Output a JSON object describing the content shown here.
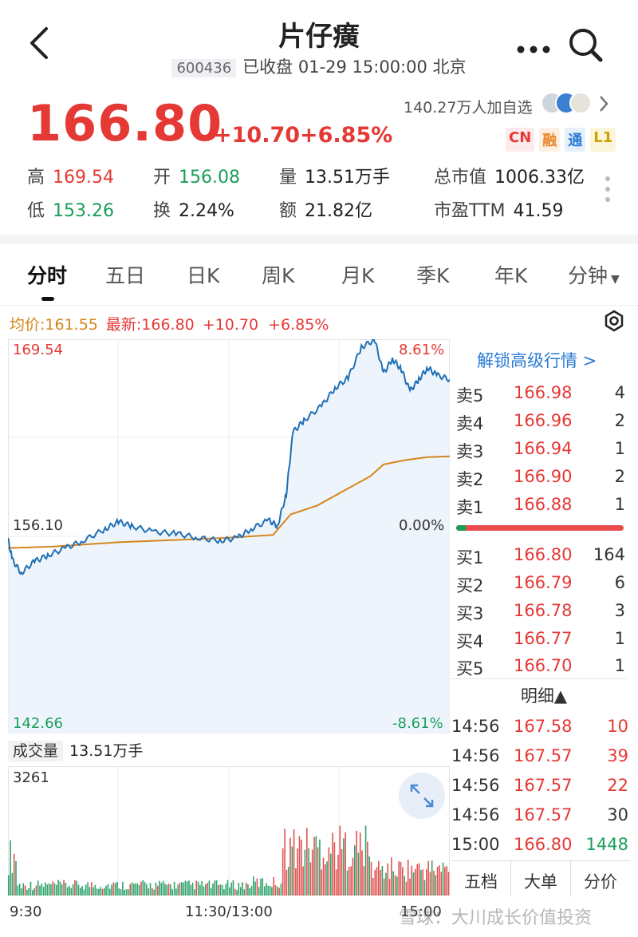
{
  "header": {
    "title": "片仔癀",
    "code": "600436",
    "status": "已收盘 01-29 15:00:00 北京"
  },
  "quote": {
    "price": "166.80",
    "change": "+10.70",
    "change_pct": "+6.85%",
    "follow_text": "140.27万人加自选",
    "tags": [
      "CN",
      "融",
      "通",
      "L1"
    ]
  },
  "stats": {
    "high_label": "高",
    "high": "169.54",
    "open_label": "开",
    "open": "156.08",
    "vol_label": "量",
    "vol": "13.51万手",
    "mcap_label": "总市值",
    "mcap": "1006.33亿",
    "low_label": "低",
    "low": "153.26",
    "turn_label": "换",
    "turn": "2.24%",
    "amt_label": "额",
    "amt": "21.82亿",
    "pe_label": "市盈TTM",
    "pe": "41.59"
  },
  "tabs": [
    "分时",
    "五日",
    "日K",
    "周K",
    "月K",
    "季K",
    "年K",
    "分钟"
  ],
  "intraday": {
    "avg_text": "均价:161.55",
    "latest_text": "最新:166.80",
    "latest_chg": "+10.70",
    "latest_pct": "+6.85%",
    "y_top": "169.54",
    "y_mid": "156.10",
    "y_bot": "142.66",
    "pct_top": "8.61%",
    "pct_mid": "0.00%",
    "pct_bot": "-8.61%",
    "vol_label": "成交量",
    "vol_value": "13.51万手",
    "vol_max": "3261",
    "x_labels": [
      "9:30",
      "11:30/13:00",
      "15:00"
    ],
    "colors": {
      "price": "#1f6fb5",
      "avg": "#d5861a",
      "up": "#e0524f",
      "down": "#2fa36b"
    }
  },
  "orderbook": {
    "unlock": "解锁高级行情 >",
    "asks": [
      {
        "label": "卖5",
        "price": "166.98",
        "vol": "4"
      },
      {
        "label": "卖4",
        "price": "166.96",
        "vol": "2"
      },
      {
        "label": "卖3",
        "price": "166.94",
        "vol": "1"
      },
      {
        "label": "卖2",
        "price": "166.90",
        "vol": "2"
      },
      {
        "label": "卖1",
        "price": "166.88",
        "vol": "1"
      }
    ],
    "bids": [
      {
        "label": "买1",
        "price": "166.80",
        "vol": "164"
      },
      {
        "label": "买2",
        "price": "166.79",
        "vol": "6"
      },
      {
        "label": "买3",
        "price": "166.78",
        "vol": "3"
      },
      {
        "label": "买4",
        "price": "166.77",
        "vol": "1"
      },
      {
        "label": "买5",
        "price": "166.70",
        "vol": "1"
      }
    ],
    "detail_title": "明细▲",
    "ticks": [
      {
        "time": "14:56",
        "price": "167.58",
        "vol": "10",
        "dir": "up"
      },
      {
        "time": "14:56",
        "price": "167.57",
        "vol": "39",
        "dir": "up"
      },
      {
        "time": "14:56",
        "price": "167.57",
        "vol": "22",
        "dir": "up"
      },
      {
        "time": "14:56",
        "price": "167.57",
        "vol": "30",
        "dir": "flat"
      },
      {
        "time": "15:00",
        "price": "166.80",
        "vol": "1448",
        "dir": "down"
      }
    ],
    "bottom_tabs": [
      "五档",
      "大单",
      "分价"
    ]
  },
  "watermark": "雪球：大川成长价值投资"
}
